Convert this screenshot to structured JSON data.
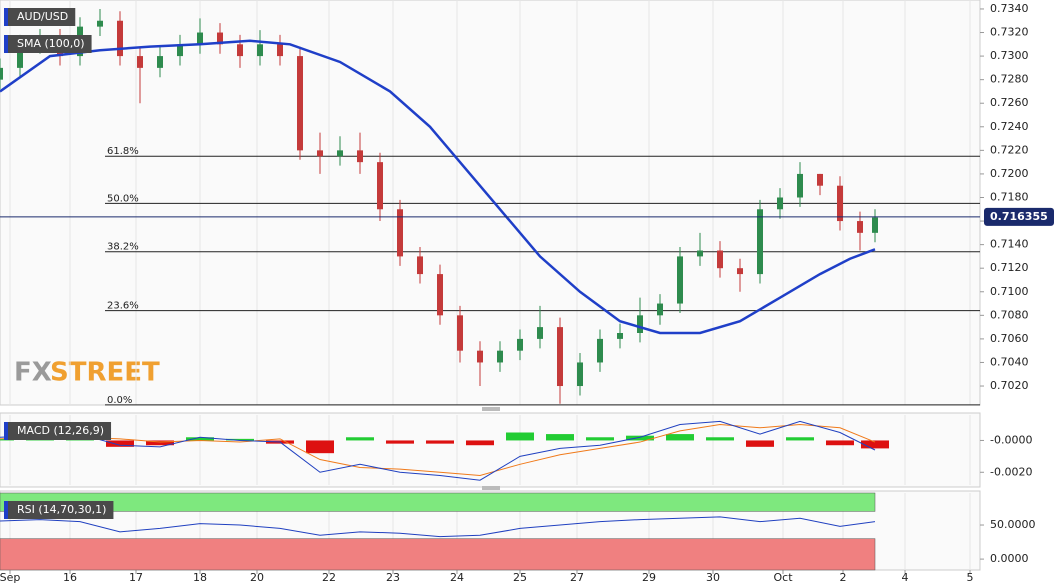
{
  "chart_data": [
    {
      "type": "candlestick",
      "title": "AUD/USD",
      "x": [
        0,
        2,
        4,
        6,
        8,
        10,
        12,
        14,
        16,
        18,
        20,
        22,
        24,
        26,
        28,
        30,
        32,
        34,
        36,
        38,
        40,
        42,
        44,
        46,
        48,
        50,
        52,
        54,
        56,
        58,
        60,
        62,
        64,
        66,
        68,
        70,
        72,
        74,
        76,
        78,
        80,
        82,
        84,
        86,
        87.5
      ],
      "open": [
        0.728,
        0.729,
        0.731,
        0.7315,
        0.73,
        0.7325,
        0.733,
        0.73,
        0.729,
        0.73,
        0.731,
        0.732,
        0.731,
        0.73,
        0.731,
        0.73,
        0.722,
        0.7215,
        0.722,
        0.721,
        0.717,
        0.713,
        0.7115,
        0.708,
        0.705,
        0.704,
        0.705,
        0.706,
        0.707,
        0.702,
        0.704,
        0.706,
        0.7065,
        0.708,
        0.709,
        0.713,
        0.7135,
        0.712,
        0.7115,
        0.717,
        0.718,
        0.72,
        0.719,
        0.716,
        0.715
      ],
      "high": [
        0.7298,
        0.7318,
        0.7323,
        0.7323,
        0.7333,
        0.734,
        0.7338,
        0.7308,
        0.7308,
        0.7318,
        0.7332,
        0.7328,
        0.7318,
        0.7322,
        0.7318,
        0.7308,
        0.7235,
        0.7232,
        0.7235,
        0.7218,
        0.7178,
        0.7138,
        0.7123,
        0.7088,
        0.7058,
        0.7058,
        0.7068,
        0.7088,
        0.7078,
        0.7048,
        0.7068,
        0.7073,
        0.7095,
        0.7098,
        0.7138,
        0.715,
        0.7143,
        0.7128,
        0.7178,
        0.7188,
        0.721,
        0.72,
        0.7198,
        0.7168,
        0.717
      ],
      "low": [
        0.7272,
        0.7282,
        0.7302,
        0.7292,
        0.7292,
        0.7317,
        0.7292,
        0.726,
        0.7282,
        0.7292,
        0.7302,
        0.7302,
        0.729,
        0.7292,
        0.7292,
        0.7212,
        0.72,
        0.7207,
        0.72,
        0.716,
        0.7122,
        0.7107,
        0.7072,
        0.704,
        0.702,
        0.7032,
        0.7042,
        0.7052,
        0.7005,
        0.7012,
        0.7032,
        0.7052,
        0.7057,
        0.7072,
        0.7082,
        0.7122,
        0.7112,
        0.71,
        0.7107,
        0.7162,
        0.7172,
        0.7182,
        0.7152,
        0.7135,
        0.7142
      ],
      "close": [
        0.729,
        0.731,
        0.7315,
        0.73,
        0.7325,
        0.733,
        0.73,
        0.729,
        0.73,
        0.731,
        0.732,
        0.731,
        0.73,
        0.731,
        0.73,
        0.722,
        0.7215,
        0.722,
        0.721,
        0.717,
        0.713,
        0.7115,
        0.708,
        0.705,
        0.704,
        0.705,
        0.706,
        0.707,
        0.702,
        0.704,
        0.706,
        0.7065,
        0.708,
        0.709,
        0.713,
        0.7135,
        0.712,
        0.7115,
        0.717,
        0.718,
        0.72,
        0.719,
        0.716,
        0.715,
        0.7163
      ],
      "up_color": "#2e8b4e",
      "down_color": "#c43a3a",
      "series": [
        {
          "name": "SMA (100,0)",
          "color": "#1f3fc8",
          "x": [
            0,
            5,
            10,
            15,
            20,
            25,
            29,
            34,
            39,
            43,
            47,
            50,
            54,
            58,
            62,
            66,
            70,
            74,
            78,
            82,
            85,
            87.5
          ],
          "values": [
            0.727,
            0.73,
            0.7305,
            0.7308,
            0.731,
            0.7313,
            0.731,
            0.7295,
            0.727,
            0.724,
            0.72,
            0.717,
            0.713,
            0.71,
            0.7075,
            0.7065,
            0.7065,
            0.7075,
            0.7095,
            0.7115,
            0.7128,
            0.7136
          ]
        }
      ],
      "fib": [
        {
          "label": "61.8%",
          "value": 0.7215
        },
        {
          "label": "50.0%",
          "value": 0.7175
        },
        {
          "label": "38.2%",
          "value": 0.7134
        },
        {
          "label": "23.6%",
          "value": 0.7084
        },
        {
          "label": "0.0%",
          "value": 0.7004
        }
      ],
      "last_price": 0.716355,
      "ylim": [
        0.70039,
        0.73476
      ],
      "yticks": [
        {
          "value": 0.702,
          "label": "0.7020"
        },
        {
          "value": 0.704,
          "label": "0.7040"
        },
        {
          "value": 0.706,
          "label": "0.7060"
        },
        {
          "value": 0.708,
          "label": "0.7080"
        },
        {
          "value": 0.71,
          "label": "0.7100"
        },
        {
          "value": 0.712,
          "label": "0.7120"
        },
        {
          "value": 0.714,
          "label": "0.7140"
        },
        {
          "value": 0.716,
          "label": "0.7160"
        },
        {
          "value": 0.718,
          "label": "0.7180"
        },
        {
          "value": 0.72,
          "label": "0.7200"
        },
        {
          "value": 0.722,
          "label": "0.7220"
        },
        {
          "value": 0.724,
          "label": "0.7240"
        },
        {
          "value": 0.726,
          "label": "0.7260"
        },
        {
          "value": 0.728,
          "label": "0.7280"
        },
        {
          "value": 0.73,
          "label": "0.7300"
        },
        {
          "value": 0.732,
          "label": "0.7320"
        },
        {
          "value": 0.734,
          "label": "0.7340"
        }
      ],
      "xlim": [
        0,
        98
      ],
      "xticks": [
        {
          "value": 1,
          "label": "Sep"
        },
        {
          "value": 7,
          "label": "16"
        },
        {
          "value": 13.6,
          "label": "17"
        },
        {
          "value": 20,
          "label": "18"
        },
        {
          "value": 25.7,
          "label": "20"
        },
        {
          "value": 32.9,
          "label": "22"
        },
        {
          "value": 39.3,
          "label": "23"
        },
        {
          "value": 45.7,
          "label": "24"
        },
        {
          "value": 52,
          "label": "25"
        },
        {
          "value": 57.7,
          "label": "27"
        },
        {
          "value": 64.9,
          "label": "29"
        },
        {
          "value": 71.3,
          "label": "30"
        },
        {
          "value": 78.3,
          "label": "Oct"
        },
        {
          "value": 84.3,
          "label": "2"
        },
        {
          "value": 90.5,
          "label": "4"
        },
        {
          "value": 97,
          "label": "5"
        }
      ],
      "logo": {
        "fx": "FX",
        "street": "STREET"
      }
    },
    {
      "type": "macd",
      "title": "MACD (12,26,9)",
      "x": [
        0,
        4,
        8,
        12,
        16,
        20,
        24,
        28,
        32,
        36,
        40,
        44,
        48,
        52,
        56,
        60,
        64,
        68,
        72,
        76,
        80,
        84,
        87.5
      ],
      "macd": [
        0.0002,
        0.0003,
        0.0004,
        -0.0003,
        -0.0004,
        0.0002,
        0.0,
        -0.0001,
        -0.002,
        -0.0015,
        -0.002,
        -0.0022,
        -0.0025,
        -0.001,
        -0.0005,
        -0.0003,
        0.0002,
        0.001,
        0.0012,
        0.0004,
        0.0012,
        0.0005,
        -0.0006
      ],
      "signal": [
        0.0001,
        0.0002,
        0.0002,
        0.0001,
        -0.0001,
        0.0,
        -0.0001,
        0.0001,
        -0.0012,
        -0.0017,
        -0.0018,
        -0.002,
        -0.0022,
        -0.0015,
        -0.0009,
        -0.0005,
        -0.0001,
        0.0006,
        0.001,
        0.0008,
        0.001,
        0.0008,
        -0.0001
      ],
      "histogram": [
        0.0001,
        0.0001,
        0.0002,
        -0.0004,
        -0.0003,
        0.0002,
        0.0001,
        -0.0002,
        -0.0008,
        0.0002,
        -0.0002,
        -0.0002,
        -0.0003,
        0.0005,
        0.0004,
        0.0002,
        0.0003,
        0.0004,
        0.0002,
        -0.0004,
        0.0002,
        -0.0003,
        -0.0005
      ],
      "macd_color": "#2040c0",
      "signal_color": "#f07a1a",
      "up_color": "#22cc33",
      "down_color": "#dd1111",
      "ylim": [
        -0.0028,
        0.0016
      ],
      "yticks": [
        {
          "value": -0.002,
          "label": "-0.0020"
        },
        {
          "value": 0,
          "label": "-0.0000"
        }
      ]
    },
    {
      "type": "line",
      "title": "RSI (14,70,30,1)",
      "x": [
        0,
        4,
        8,
        12,
        16,
        20,
        24,
        28,
        32,
        36,
        40,
        44,
        48,
        52,
        56,
        60,
        64,
        68,
        72,
        76,
        80,
        84,
        87.5
      ],
      "values": [
        56,
        58,
        55,
        40,
        45,
        52,
        50,
        45,
        35,
        40,
        38,
        33,
        35,
        45,
        50,
        55,
        58,
        60,
        62,
        55,
        60,
        48,
        55
      ],
      "color": "#2040c0",
      "bands": [
        {
          "from": 70,
          "to": 97,
          "color": "#7ee87e"
        },
        {
          "from": -16,
          "to": 30,
          "color": "#f08080"
        }
      ],
      "ylim": [
        -16,
        97
      ],
      "yticks": [
        {
          "value": 0,
          "label": "0.0000"
        },
        {
          "value": 50,
          "label": "50.0000"
        }
      ]
    }
  ]
}
